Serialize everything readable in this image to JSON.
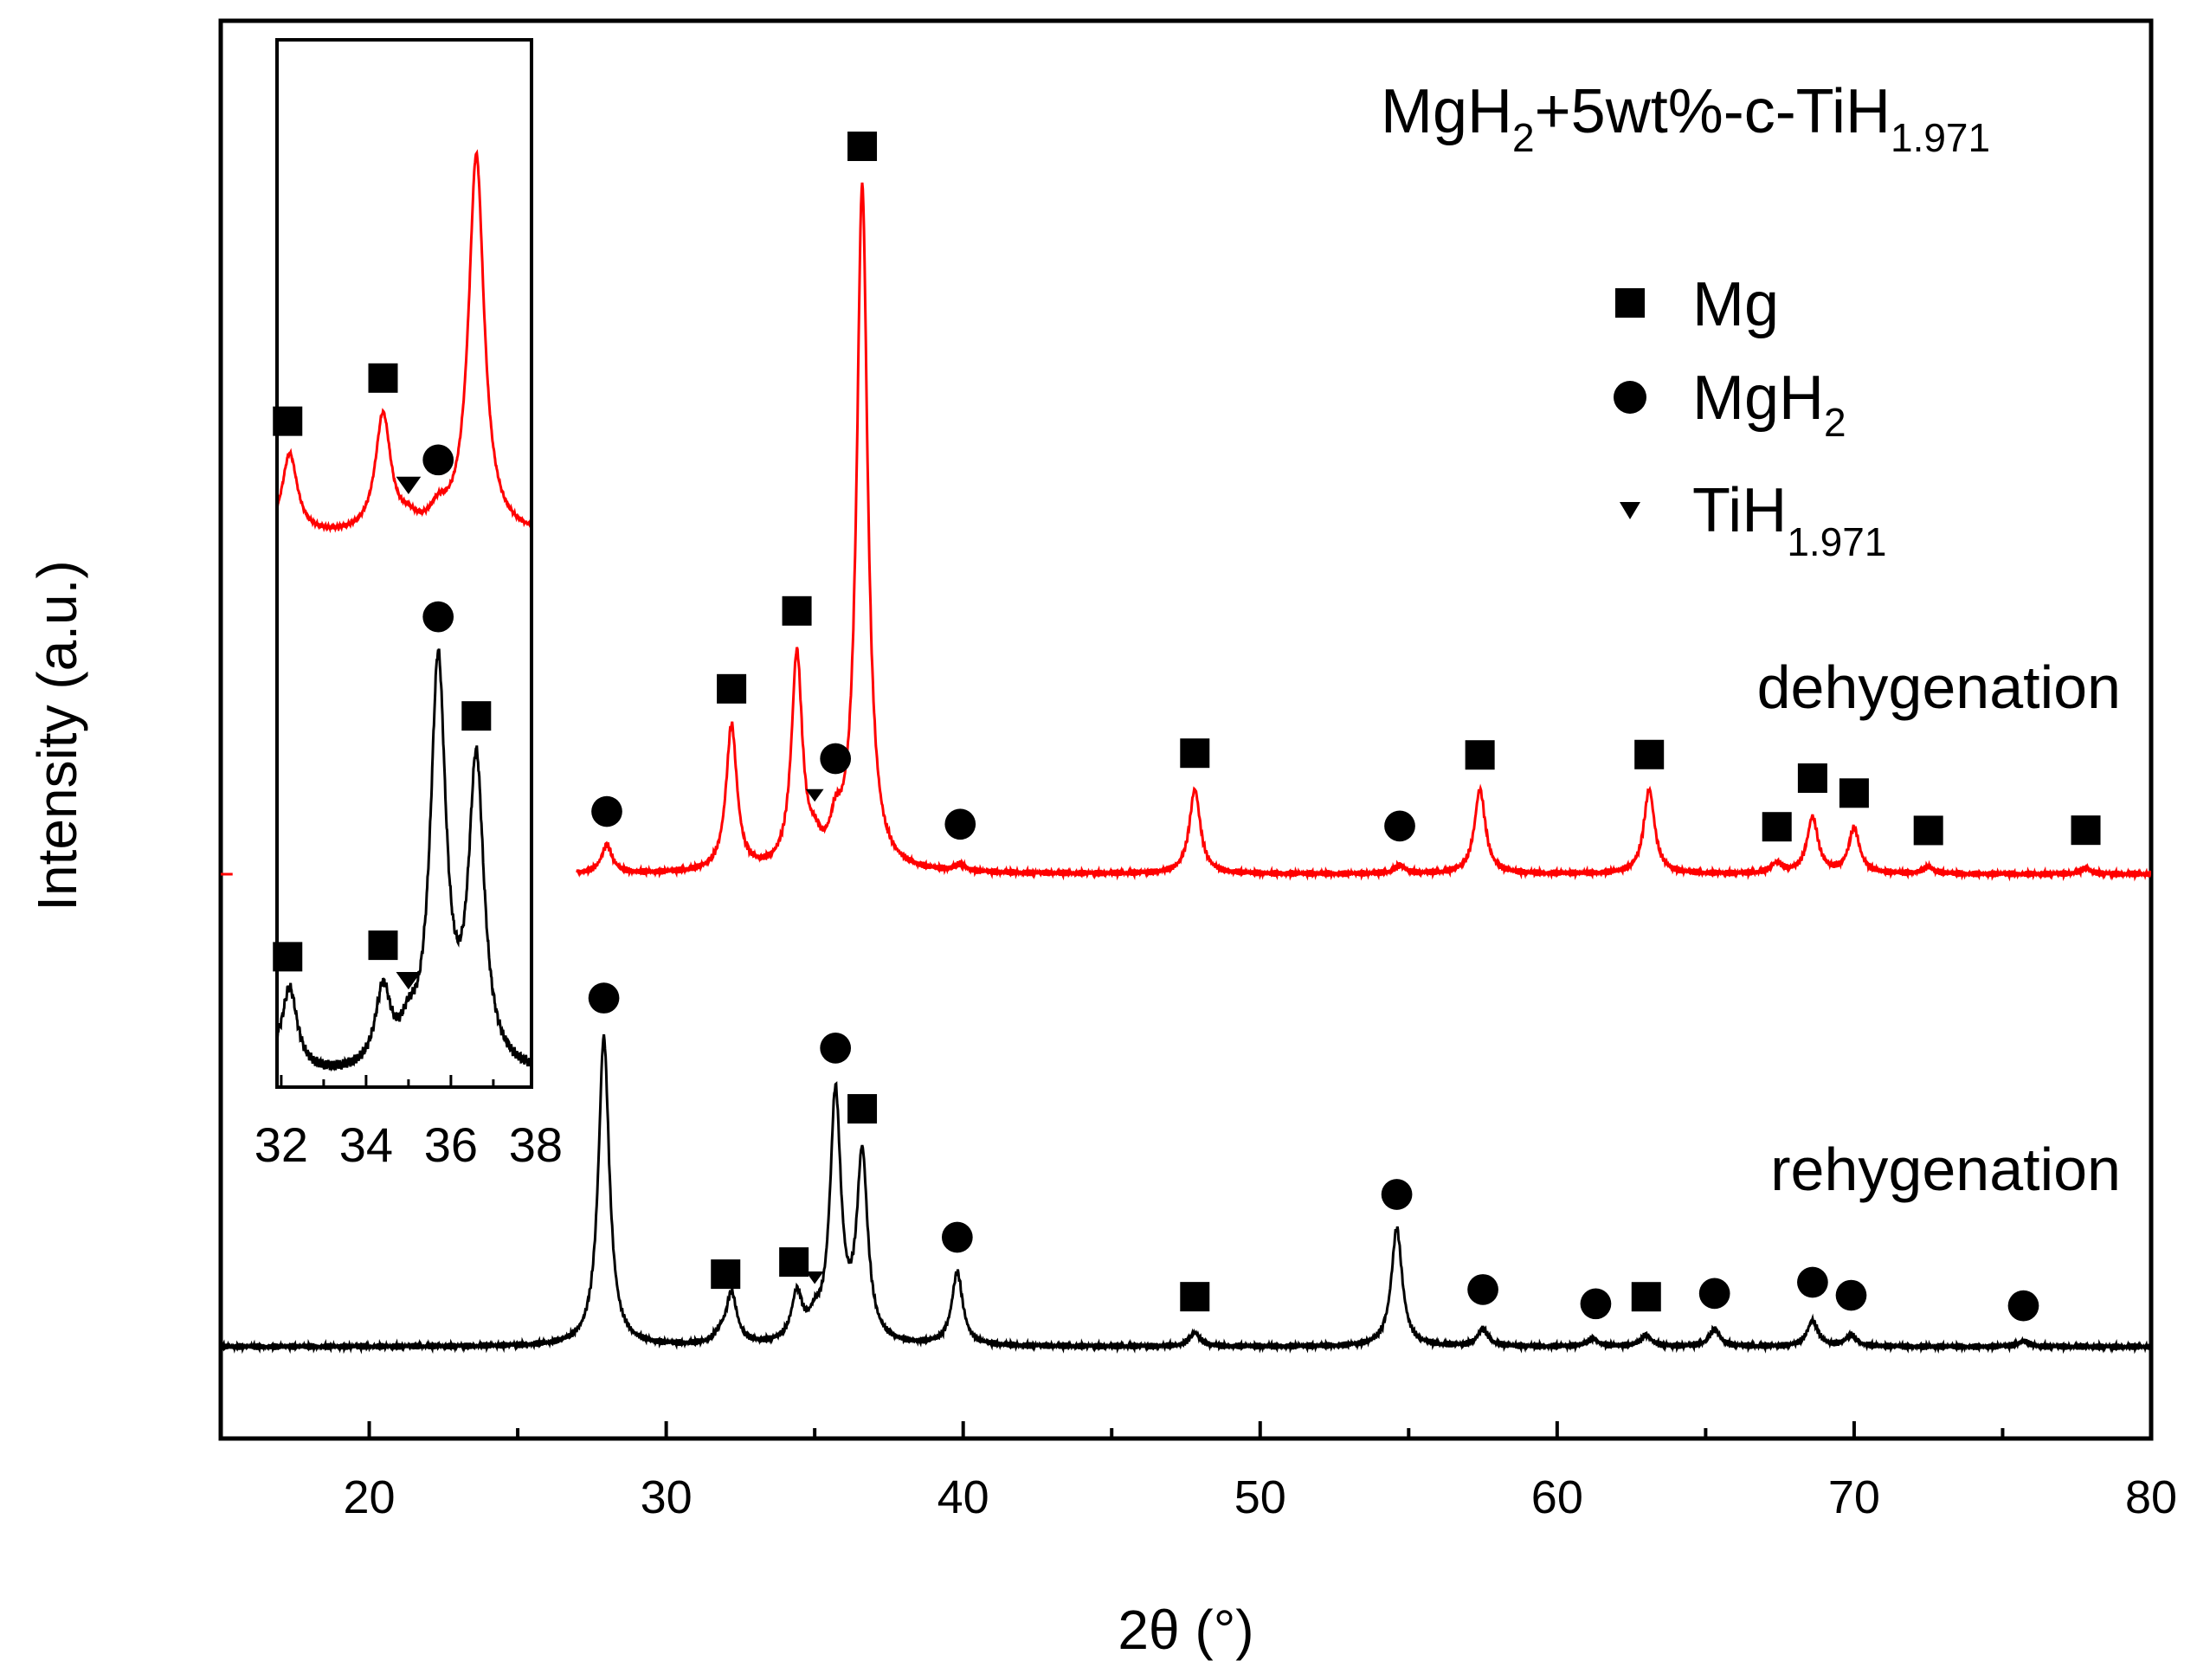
{
  "chart_data": {
    "type": "line",
    "title": "MgH2+5wt%-c-TiH1.971",
    "title_parts": {
      "a": "MgH",
      "b": "2",
      "c": "+5wt%-c-TiH",
      "d": "1.971"
    },
    "xlabel": "2θ (°)",
    "ylabel": "Intensity (a.u.)",
    "xlim": [
      15,
      80
    ],
    "x_ticks": [
      20,
      30,
      40,
      50,
      60,
      70,
      80
    ],
    "y_ticks_shown": false,
    "colors": {
      "dehygenation": "#ff0000",
      "rehygenation": "#000000"
    },
    "series": [
      {
        "name": "dehygenation",
        "baseline": 0.0,
        "peaks": [
          {
            "x": 28.0,
            "h": 0.25
          },
          {
            "x": 32.2,
            "h": 1.3
          },
          {
            "x": 34.4,
            "h": 1.9
          },
          {
            "x": 35.0,
            "h": 0.15
          },
          {
            "x": 35.7,
            "h": 0.28
          },
          {
            "x": 36.6,
            "h": 6.1
          },
          {
            "x": 39.9,
            "h": 0.06
          },
          {
            "x": 47.8,
            "h": 0.75
          },
          {
            "x": 54.7,
            "h": 0.07
          },
          {
            "x": 57.4,
            "h": 0.75
          },
          {
            "x": 63.1,
            "h": 0.75
          },
          {
            "x": 67.4,
            "h": 0.09
          },
          {
            "x": 68.6,
            "h": 0.5
          },
          {
            "x": 70.0,
            "h": 0.4
          },
          {
            "x": 72.5,
            "h": 0.06
          },
          {
            "x": 77.8,
            "h": 0.05
          }
        ]
      },
      {
        "name": "rehygenation",
        "baseline": -4.2,
        "peaks": [
          {
            "x": 27.9,
            "h": 2.75
          },
          {
            "x": 31.8,
            "h": 0.07
          },
          {
            "x": 32.2,
            "h": 0.45
          },
          {
            "x": 34.4,
            "h": 0.42
          },
          {
            "x": 35.0,
            "h": 0.15
          },
          {
            "x": 35.7,
            "h": 2.2
          },
          {
            "x": 36.6,
            "h": 1.65
          },
          {
            "x": 39.8,
            "h": 0.65
          },
          {
            "x": 47.8,
            "h": 0.12
          },
          {
            "x": 54.6,
            "h": 1.05
          },
          {
            "x": 57.5,
            "h": 0.15
          },
          {
            "x": 61.2,
            "h": 0.07
          },
          {
            "x": 63.0,
            "h": 0.1
          },
          {
            "x": 65.3,
            "h": 0.15
          },
          {
            "x": 68.6,
            "h": 0.23
          },
          {
            "x": 69.9,
            "h": 0.1
          },
          {
            "x": 75.7,
            "h": 0.05
          }
        ]
      }
    ],
    "markers": [
      {
        "series": "dehygenation",
        "x": 28.0,
        "phase": "MgH2"
      },
      {
        "series": "dehygenation",
        "x": 32.2,
        "phase": "Mg"
      },
      {
        "series": "dehygenation",
        "x": 34.4,
        "phase": "Mg"
      },
      {
        "series": "dehygenation",
        "x": 35.0,
        "phase": "TiH1.971"
      },
      {
        "series": "dehygenation",
        "x": 35.7,
        "phase": "MgH2"
      },
      {
        "series": "dehygenation",
        "x": 36.6,
        "phase": "Mg"
      },
      {
        "series": "dehygenation",
        "x": 39.9,
        "phase": "MgH2"
      },
      {
        "series": "dehygenation",
        "x": 47.8,
        "phase": "Mg"
      },
      {
        "series": "dehygenation",
        "x": 54.7,
        "phase": "MgH2"
      },
      {
        "series": "dehygenation",
        "x": 57.4,
        "phase": "Mg"
      },
      {
        "series": "dehygenation",
        "x": 63.1,
        "phase": "Mg"
      },
      {
        "series": "dehygenation",
        "x": 67.4,
        "phase": "Mg"
      },
      {
        "series": "dehygenation",
        "x": 68.6,
        "phase": "Mg"
      },
      {
        "series": "dehygenation",
        "x": 70.0,
        "phase": "Mg"
      },
      {
        "series": "dehygenation",
        "x": 72.5,
        "phase": "Mg"
      },
      {
        "series": "dehygenation",
        "x": 77.8,
        "phase": "Mg"
      },
      {
        "series": "rehygenation",
        "x": 27.9,
        "phase": "MgH2"
      },
      {
        "series": "rehygenation",
        "x": 32.0,
        "phase": "Mg"
      },
      {
        "series": "rehygenation",
        "x": 34.3,
        "phase": "Mg"
      },
      {
        "series": "rehygenation",
        "x": 35.0,
        "phase": "TiH1.971"
      },
      {
        "series": "rehygenation",
        "x": 35.7,
        "phase": "MgH2"
      },
      {
        "series": "rehygenation",
        "x": 36.6,
        "phase": "Mg"
      },
      {
        "series": "rehygenation",
        "x": 39.8,
        "phase": "MgH2"
      },
      {
        "series": "rehygenation",
        "x": 47.8,
        "phase": "Mg"
      },
      {
        "series": "rehygenation",
        "x": 54.6,
        "phase": "MgH2"
      },
      {
        "series": "rehygenation",
        "x": 57.5,
        "phase": "MgH2"
      },
      {
        "series": "rehygenation",
        "x": 61.3,
        "phase": "MgH2"
      },
      {
        "series": "rehygenation",
        "x": 63.0,
        "phase": "Mg"
      },
      {
        "series": "rehygenation",
        "x": 65.3,
        "phase": "MgH2"
      },
      {
        "series": "rehygenation",
        "x": 68.6,
        "phase": "MgH2"
      },
      {
        "series": "rehygenation",
        "x": 69.9,
        "phase": "MgH2"
      },
      {
        "series": "rehygenation",
        "x": 75.7,
        "phase": "MgH2"
      }
    ],
    "legend": [
      {
        "symbol": "square",
        "label": "Mg",
        "main": "Mg",
        "sub": ""
      },
      {
        "symbol": "circle",
        "label": "MgH2",
        "main": "MgH",
        "sub": "2"
      },
      {
        "symbol": "triangle",
        "label": "TiH1.971",
        "main": "TiH",
        "sub": "1.971"
      }
    ],
    "annotations": [
      "dehygenation",
      "rehygenation"
    ],
    "inset": {
      "xlim": [
        31.9,
        37.9
      ],
      "x_ticks": [
        32,
        34,
        36,
        38
      ],
      "markers": [
        {
          "series": "dehygenation",
          "x": 32.2,
          "phase": "Mg"
        },
        {
          "series": "dehygenation",
          "x": 34.4,
          "phase": "Mg"
        },
        {
          "series": "dehygenation",
          "x": 35.0,
          "phase": "TiH1.971"
        },
        {
          "series": "dehygenation",
          "x": 35.7,
          "phase": "MgH2"
        },
        {
          "series": "rehygenation",
          "x": 32.2,
          "phase": "Mg"
        },
        {
          "series": "rehygenation",
          "x": 34.4,
          "phase": "Mg"
        },
        {
          "series": "rehygenation",
          "x": 35.0,
          "phase": "TiH1.971"
        },
        {
          "series": "rehygenation",
          "x": 35.7,
          "phase": "MgH2"
        },
        {
          "series": "rehygenation",
          "x": 36.6,
          "phase": "Mg"
        }
      ]
    }
  }
}
